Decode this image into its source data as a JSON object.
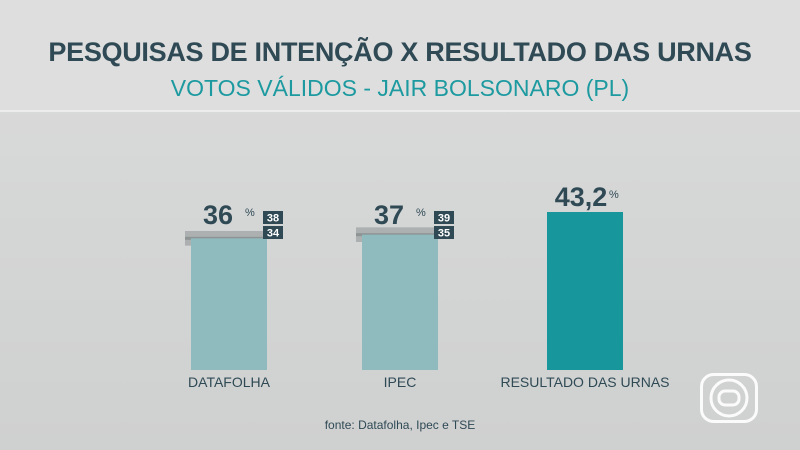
{
  "header": {
    "title": "PESQUISAS DE INTENÇÃO X RESULTADO DAS URNAS",
    "subtitle": "VOTOS VÁLIDOS - JAIR BOLSONARO (PL)"
  },
  "footer": {
    "source": "fonte: Datafolha, Ipec e TSE"
  },
  "colors": {
    "poll_bar": "#8fbbbf",
    "result_bar": "#17979c",
    "margin_band": "#a5a9aa",
    "badge_bg": "#2f4a55",
    "text_dark": "#2f4a55",
    "subtitle": "#1c9aa0"
  },
  "chart_data": {
    "type": "bar",
    "categories": [
      "DATAFOLHA",
      "IPEC",
      "RESULTADO DAS URNAS"
    ],
    "values": [
      36,
      37,
      43.2
    ],
    "value_labels": [
      "36",
      "37",
      "43,2"
    ],
    "unit": "%",
    "margin_of_error": [
      {
        "high": 38,
        "low": 34
      },
      {
        "high": 39,
        "low": 35
      },
      null
    ],
    "title": "PESQUISAS DE INTENÇÃO X RESULTADO DAS URNAS",
    "subtitle": "VOTOS VÁLIDOS - JAIR BOLSONARO (PL)",
    "ylim": [
      0,
      43.2
    ],
    "grid": false
  }
}
